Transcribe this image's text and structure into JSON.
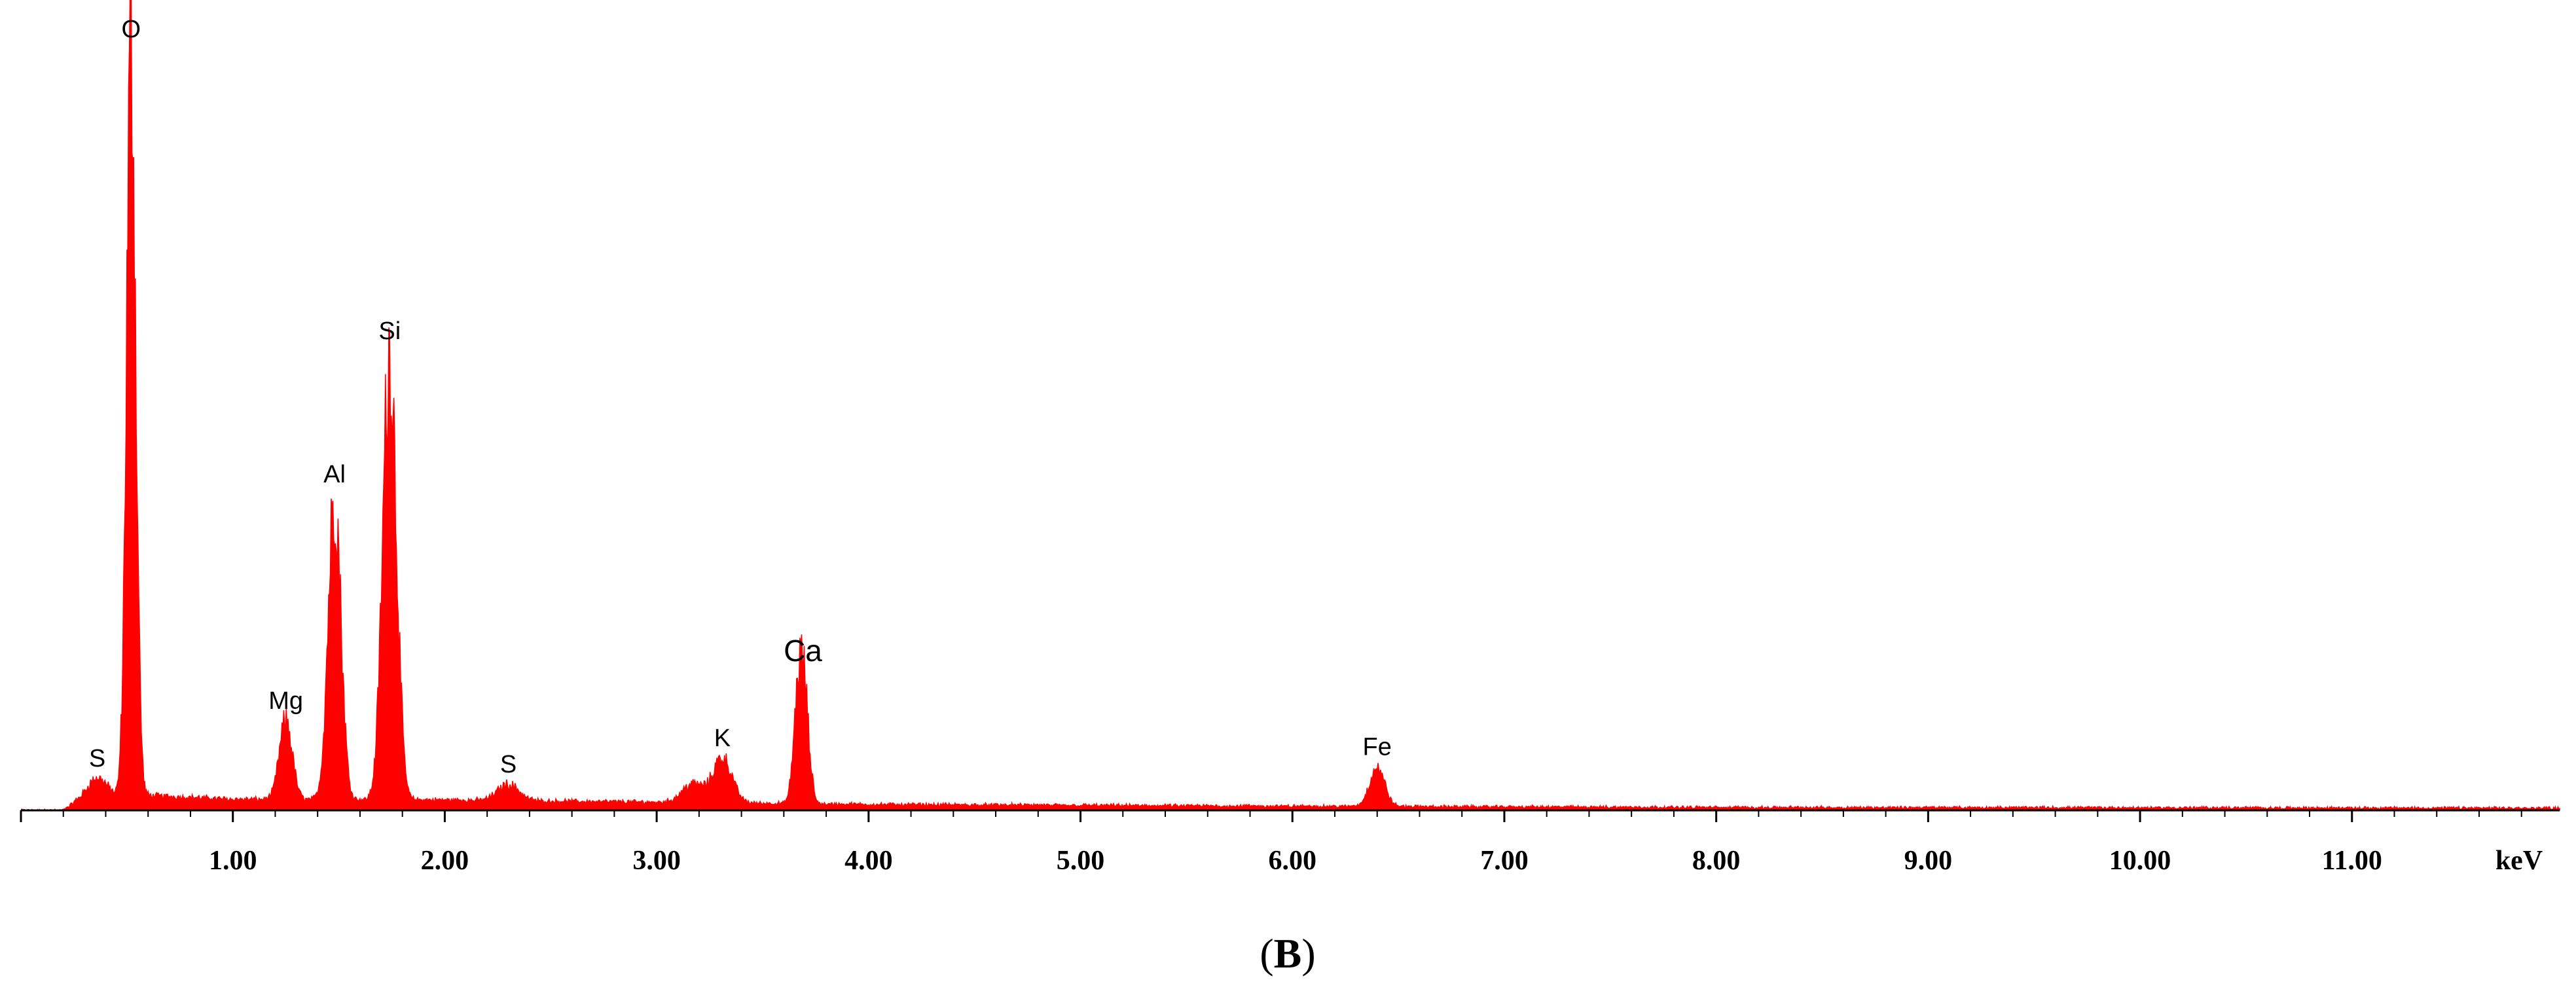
{
  "chart_data": {
    "type": "area",
    "title": "",
    "xlabel": "",
    "ylabel": "",
    "x_unit": "keV",
    "xlim": [
      0.0,
      11.98
    ],
    "ylim": [
      0,
      100
    ],
    "x_ticks": [
      {
        "value": 1.0,
        "label": "1.00"
      },
      {
        "value": 2.0,
        "label": "2.00"
      },
      {
        "value": 3.0,
        "label": "3.00"
      },
      {
        "value": 4.0,
        "label": "4.00"
      },
      {
        "value": 5.0,
        "label": "5.00"
      },
      {
        "value": 6.0,
        "label": "6.00"
      },
      {
        "value": 7.0,
        "label": "7.00"
      },
      {
        "value": 8.0,
        "label": "8.00"
      },
      {
        "value": 9.0,
        "label": "9.00"
      },
      {
        "value": 10.0,
        "label": "10.00"
      },
      {
        "value": 11.0,
        "label": "11.00"
      }
    ],
    "y_ticks_shown": false,
    "grid": false,
    "legend": "none",
    "series_color": "#ff0000",
    "panel_label": {
      "open": "(",
      "letter": "B",
      "close": ")"
    },
    "peaks": [
      {
        "element": "S",
        "energy": 0.36,
        "intensity": 3.0,
        "width": 0.05
      },
      {
        "element": "O",
        "energy": 0.52,
        "intensity": 100.0,
        "width": 0.022
      },
      {
        "element": "Mg",
        "energy": 1.25,
        "intensity": 10.5,
        "width": 0.03
      },
      {
        "element": "Al",
        "energy": 1.48,
        "intensity": 40.8,
        "width": 0.03
      },
      {
        "element": "Si",
        "energy": 1.74,
        "intensity": 60.0,
        "width": 0.032
      },
      {
        "element": "S",
        "energy": 2.3,
        "intensity": 2.2,
        "width": 0.05
      },
      {
        "element": "K",
        "energy": 3.31,
        "intensity": 6.0,
        "width": 0.045
      },
      {
        "element": "Ca",
        "energy": 3.69,
        "intensity": 17.5,
        "width": 0.025
      },
      {
        "element": "Fe",
        "energy": 6.4,
        "intensity": 5.3,
        "width": 0.035
      }
    ],
    "minor_peaks": [
      {
        "energy": 3.66,
        "intensity": 6.5,
        "width": 0.02
      },
      {
        "energy": 3.17,
        "intensity": 2.5,
        "width": 0.05
      }
    ],
    "background": [
      {
        "energy": 0.2,
        "level": 0.0
      },
      {
        "energy": 0.26,
        "level": 1.0
      },
      {
        "energy": 0.6,
        "level": 2.0
      },
      {
        "energy": 1.0,
        "level": 1.5
      },
      {
        "energy": 2.0,
        "level": 1.4
      },
      {
        "energy": 3.0,
        "level": 1.1
      },
      {
        "energy": 4.0,
        "level": 0.8
      },
      {
        "energy": 6.0,
        "level": 0.55
      },
      {
        "energy": 8.0,
        "level": 0.4
      },
      {
        "energy": 11.98,
        "level": 0.3
      }
    ]
  }
}
